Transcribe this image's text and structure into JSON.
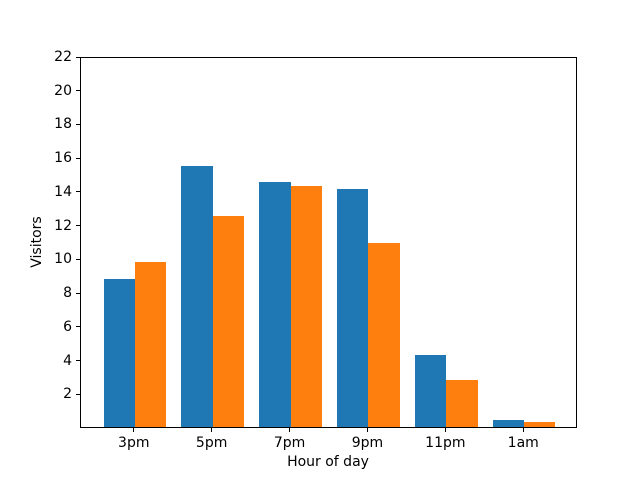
{
  "chart_data": {
    "type": "bar",
    "categories": [
      "3pm",
      "5pm",
      "7pm",
      "9pm",
      "11pm",
      "1am"
    ],
    "series": [
      {
        "color": "#1f77b4",
        "values": [
          8.8,
          15.5,
          14.5,
          14.1,
          4.3,
          0.4
        ]
      },
      {
        "color": "#ff7f0e",
        "values": [
          9.8,
          12.5,
          14.3,
          10.9,
          2.8,
          0.3
        ]
      }
    ],
    "title": "",
    "xlabel": "Hour of day",
    "ylabel": "Visitors",
    "ylim": [
      0,
      22
    ],
    "yticks": [
      2,
      4,
      6,
      8,
      10,
      12,
      14,
      16,
      18,
      20,
      22
    ],
    "bar_width": 0.4,
    "group_gap": 0.69,
    "grid": false,
    "legend": false,
    "axis_color": "#000000",
    "background_color": "#ffffff"
  }
}
